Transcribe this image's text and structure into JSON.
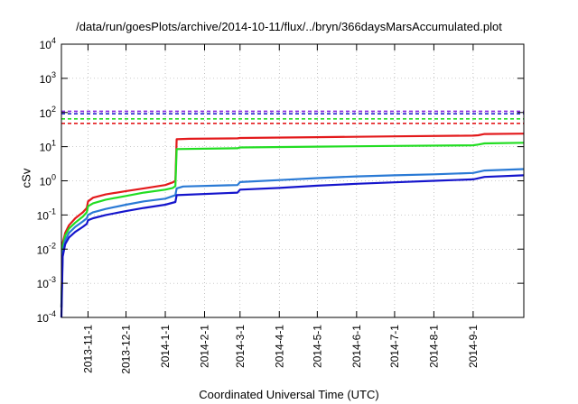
{
  "chart_data": {
    "type": "line",
    "title": "/data/run/goesPlots/archive/2014-10-11/flux/../bryn/366daysMarsAccumulated.plot",
    "xlabel": "Coordinated Universal Time (UTC)",
    "ylabel": "cSv",
    "y_scale": "log",
    "ylim": [
      0.0001,
      10000
    ],
    "xlim": [
      "2013-10-11",
      "2014-10-11"
    ],
    "grid": true,
    "y_ticks": [
      {
        "base": "10",
        "exp": "-4",
        "value": 0.0001
      },
      {
        "base": "10",
        "exp": "-3",
        "value": 0.001
      },
      {
        "base": "10",
        "exp": "-2",
        "value": 0.01
      },
      {
        "base": "10",
        "exp": "-1",
        "value": 0.1
      },
      {
        "base": "10",
        "exp": "0",
        "value": 1
      },
      {
        "base": "10",
        "exp": "1",
        "value": 10
      },
      {
        "base": "10",
        "exp": "2",
        "value": 100
      },
      {
        "base": "10",
        "exp": "3",
        "value": 1000
      },
      {
        "base": "10",
        "exp": "4",
        "value": 10000
      }
    ],
    "x_ticks": [
      "2013-11-1",
      "2013-12-1",
      "2014-1-1",
      "2014-2-1",
      "2014-3-1",
      "2014-4-1",
      "2014-5-1",
      "2014-6-1",
      "2014-7-1",
      "2014-8-1",
      "2014-9-1"
    ],
    "series": [
      {
        "color": "#e31a1c",
        "points": [
          [
            "2013-10-11",
            0.0002
          ],
          [
            "2013-10-12",
            0.015
          ],
          [
            "2013-10-14",
            0.03
          ],
          [
            "2013-10-17",
            0.05
          ],
          [
            "2013-10-22",
            0.08
          ],
          [
            "2013-10-28",
            0.12
          ],
          [
            "2013-10-31",
            0.16
          ],
          [
            "2013-11-1",
            0.25
          ],
          [
            "2013-11-5",
            0.32
          ],
          [
            "2013-11-15",
            0.4
          ],
          [
            "2013-12-1",
            0.5
          ],
          [
            "2013-12-15",
            0.6
          ],
          [
            "2014-1-1",
            0.75
          ],
          [
            "2014-1-7",
            0.9
          ],
          [
            "2014-1-9",
            1.0
          ],
          [
            "2014-1-10",
            16.5
          ],
          [
            "2014-1-20",
            17.0
          ],
          [
            "2014-2-27",
            17.5
          ],
          [
            "2014-3-1",
            18.0
          ],
          [
            "2014-5-1",
            19.0
          ],
          [
            "2014-7-1",
            20.0
          ],
          [
            "2014-9-1",
            21.0
          ],
          [
            "2014-9-5",
            21.5
          ],
          [
            "2014-9-10",
            23.5
          ],
          [
            "2014-10-11",
            24.0
          ]
        ]
      },
      {
        "color": "#22dd22",
        "points": [
          [
            "2013-10-11",
            0.0002
          ],
          [
            "2013-10-12",
            0.012
          ],
          [
            "2013-10-14",
            0.025
          ],
          [
            "2013-10-17",
            0.04
          ],
          [
            "2013-10-22",
            0.06
          ],
          [
            "2013-10-28",
            0.09
          ],
          [
            "2013-10-31",
            0.12
          ],
          [
            "2013-11-1",
            0.18
          ],
          [
            "2013-11-5",
            0.22
          ],
          [
            "2013-11-15",
            0.28
          ],
          [
            "2013-12-1",
            0.36
          ],
          [
            "2013-12-15",
            0.45
          ],
          [
            "2014-1-1",
            0.55
          ],
          [
            "2014-1-7",
            0.62
          ],
          [
            "2014-1-9",
            0.7
          ],
          [
            "2014-1-10",
            8.5
          ],
          [
            "2014-2-27",
            9.0
          ],
          [
            "2014-3-1",
            9.5
          ],
          [
            "2014-5-1",
            10.0
          ],
          [
            "2014-7-1",
            10.5
          ],
          [
            "2014-9-1",
            11.0
          ],
          [
            "2014-9-5",
            11.5
          ],
          [
            "2014-9-10",
            12.5
          ],
          [
            "2014-10-11",
            13.0
          ]
        ]
      },
      {
        "color": "#2a7ad5",
        "points": [
          [
            "2013-10-11",
            0.0002
          ],
          [
            "2013-10-12",
            0.008
          ],
          [
            "2013-10-14",
            0.018
          ],
          [
            "2013-10-17",
            0.03
          ],
          [
            "2013-10-22",
            0.045
          ],
          [
            "2013-10-28",
            0.065
          ],
          [
            "2013-10-31",
            0.08
          ],
          [
            "2013-11-1",
            0.1
          ],
          [
            "2013-11-5",
            0.12
          ],
          [
            "2013-11-15",
            0.15
          ],
          [
            "2013-12-1",
            0.2
          ],
          [
            "2013-12-15",
            0.25
          ],
          [
            "2014-1-1",
            0.3
          ],
          [
            "2014-1-9",
            0.38
          ],
          [
            "2014-1-10",
            0.6
          ],
          [
            "2014-1-15",
            0.68
          ],
          [
            "2014-2-27",
            0.75
          ],
          [
            "2014-3-1",
            0.92
          ],
          [
            "2014-4-1",
            1.05
          ],
          [
            "2014-5-1",
            1.2
          ],
          [
            "2014-6-1",
            1.35
          ],
          [
            "2014-7-1",
            1.45
          ],
          [
            "2014-8-1",
            1.55
          ],
          [
            "2014-9-1",
            1.7
          ],
          [
            "2014-9-10",
            2.0
          ],
          [
            "2014-10-11",
            2.2
          ]
        ]
      },
      {
        "color": "#1515cc",
        "points": [
          [
            "2013-10-11",
            0.0001
          ],
          [
            "2013-10-12",
            0.006
          ],
          [
            "2013-10-14",
            0.014
          ],
          [
            "2013-10-17",
            0.022
          ],
          [
            "2013-10-22",
            0.032
          ],
          [
            "2013-10-28",
            0.045
          ],
          [
            "2013-10-31",
            0.055
          ],
          [
            "2013-11-1",
            0.07
          ],
          [
            "2013-11-5",
            0.08
          ],
          [
            "2013-11-15",
            0.1
          ],
          [
            "2013-12-1",
            0.13
          ],
          [
            "2013-12-15",
            0.16
          ],
          [
            "2014-1-1",
            0.2
          ],
          [
            "2014-1-9",
            0.24
          ],
          [
            "2014-1-10",
            0.38
          ],
          [
            "2014-2-27",
            0.45
          ],
          [
            "2014-3-1",
            0.55
          ],
          [
            "2014-4-1",
            0.62
          ],
          [
            "2014-5-1",
            0.72
          ],
          [
            "2014-6-1",
            0.82
          ],
          [
            "2014-7-1",
            0.9
          ],
          [
            "2014-8-1",
            1.0
          ],
          [
            "2014-9-1",
            1.1
          ],
          [
            "2014-9-10",
            1.3
          ],
          [
            "2014-10-11",
            1.45
          ]
        ]
      }
    ],
    "thresholds": [
      {
        "value": 48,
        "color": "#e31a1c"
      },
      {
        "value": 65,
        "color": "#22dd22"
      },
      {
        "value": 92,
        "color": "#1515cc"
      },
      {
        "value": 108,
        "color": "#8a2be2"
      }
    ]
  }
}
